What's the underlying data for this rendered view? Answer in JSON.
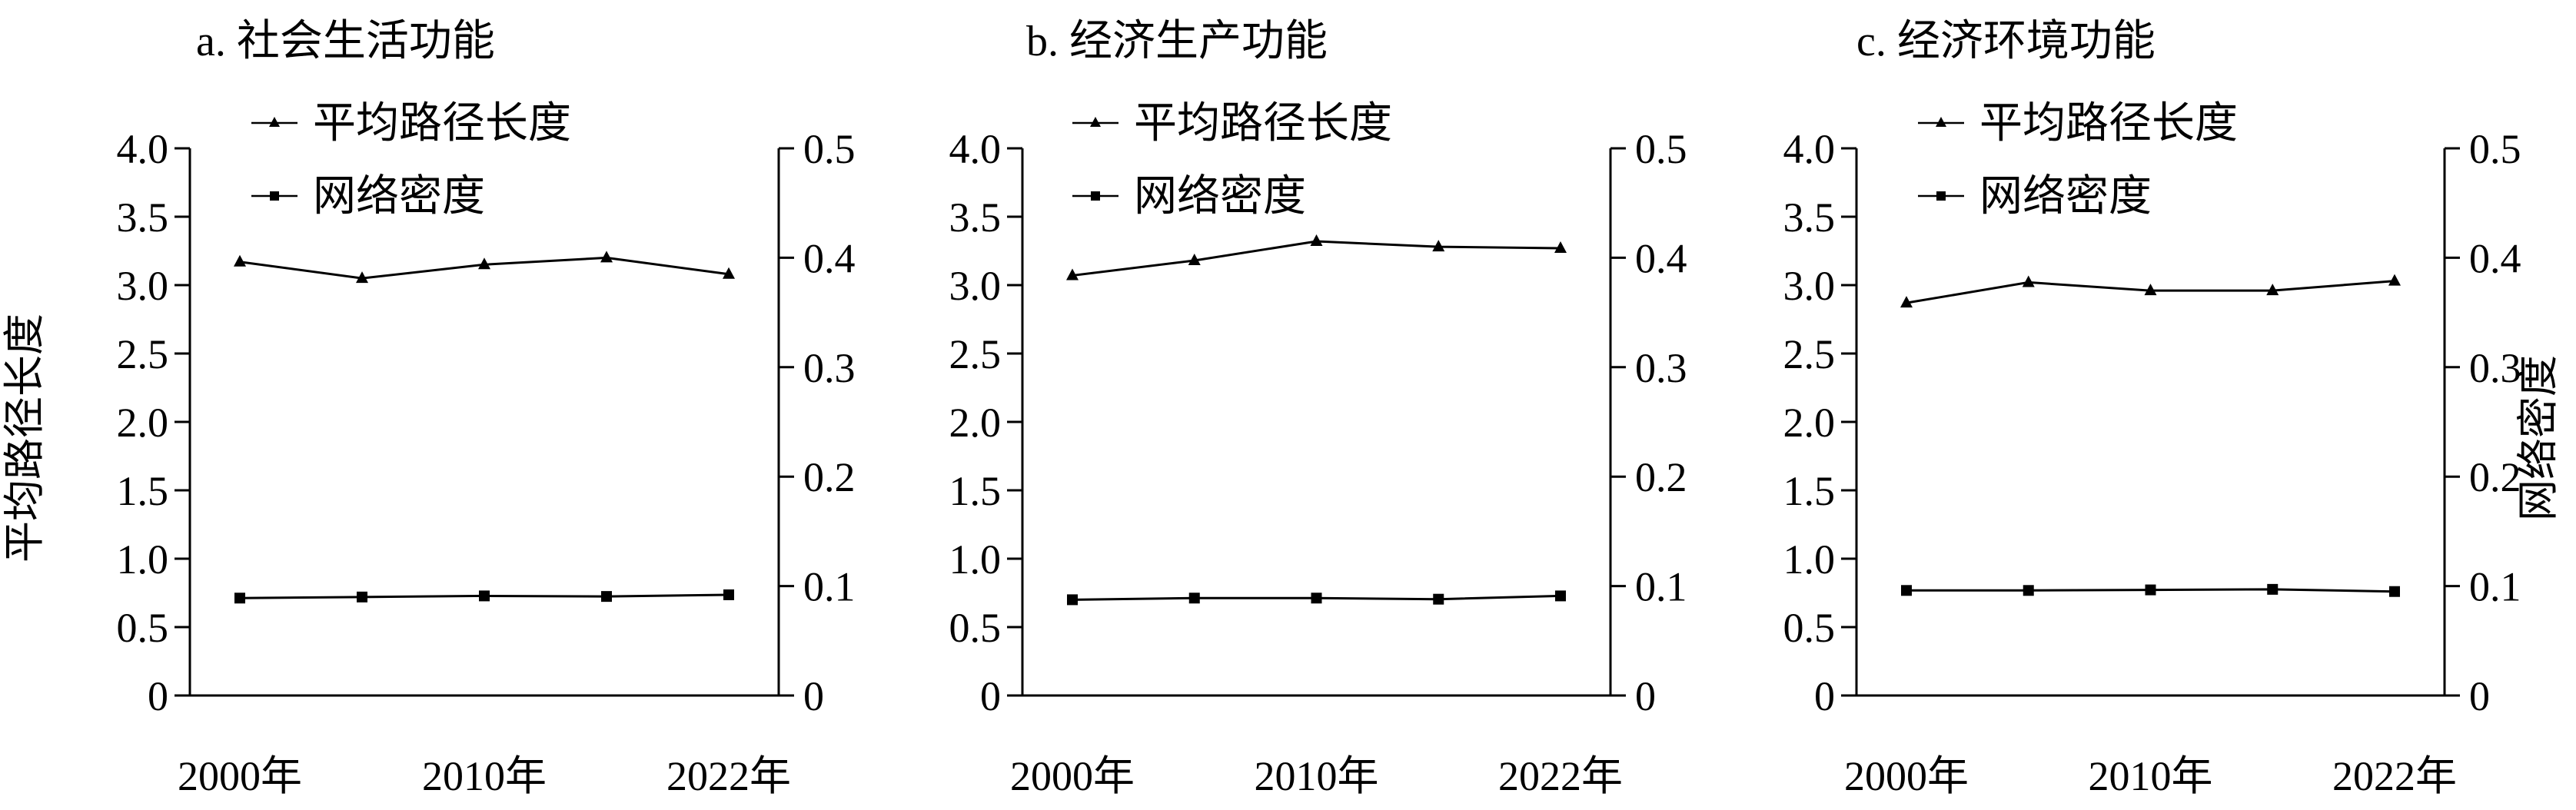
{
  "figure": {
    "y_left_label": "平均路径长度",
    "y_right_label": "网络密度"
  },
  "chart_data": [
    {
      "type": "line",
      "title": "a. 社会生活功能",
      "categories": [
        "2000年",
        "",
        "2010年",
        "",
        "2022年"
      ],
      "ylim_left": [
        0,
        4.0
      ],
      "ylim_right": [
        0,
        0.5
      ],
      "left_ticks": [
        "0",
        "0.5",
        "1.0",
        "1.5",
        "2.0",
        "2.5",
        "3.0",
        "3.5",
        "4.0"
      ],
      "right_ticks": [
        "0",
        "0.1",
        "0.2",
        "0.3",
        "0.4",
        "0.5"
      ],
      "legend_position": "top-left",
      "series": [
        {
          "name": "平均路径长度",
          "axis": "left",
          "marker": "triangle",
          "values": [
            3.17,
            3.05,
            3.15,
            3.2,
            3.08
          ]
        },
        {
          "name": "网络密度",
          "axis": "right",
          "marker": "square",
          "values": [
            0.089,
            0.09,
            0.091,
            0.0905,
            0.092
          ]
        }
      ]
    },
    {
      "type": "line",
      "title": "b. 经济生产功能",
      "categories": [
        "2000年",
        "",
        "2010年",
        "",
        "2022年"
      ],
      "ylim_left": [
        0,
        4.0
      ],
      "ylim_right": [
        0,
        0.5
      ],
      "left_ticks": [
        "0",
        "0.5",
        "1.0",
        "1.5",
        "2.0",
        "2.5",
        "3.0",
        "3.5",
        "4.0"
      ],
      "right_ticks": [
        "0",
        "0.1",
        "0.2",
        "0.3",
        "0.4",
        "0.5"
      ],
      "legend_position": "top-left",
      "series": [
        {
          "name": "平均路径长度",
          "axis": "left",
          "marker": "triangle",
          "values": [
            3.07,
            3.18,
            3.32,
            3.28,
            3.27
          ]
        },
        {
          "name": "网络密度",
          "axis": "right",
          "marker": "square",
          "values": [
            0.0875,
            0.089,
            0.089,
            0.088,
            0.091
          ]
        }
      ]
    },
    {
      "type": "line",
      "title": "c. 经济环境功能",
      "categories": [
        "2000年",
        "",
        "2010年",
        "",
        "2022年"
      ],
      "ylim_left": [
        0,
        4.0
      ],
      "ylim_right": [
        0,
        0.5
      ],
      "left_ticks": [
        "0",
        "0.5",
        "1.0",
        "1.5",
        "2.0",
        "2.5",
        "3.0",
        "3.5",
        "4.0"
      ],
      "right_ticks": [
        "0",
        "0.1",
        "0.2",
        "0.3",
        "0.4",
        "0.5"
      ],
      "legend_position": "top-left",
      "series": [
        {
          "name": "平均路径长度",
          "axis": "left",
          "marker": "triangle",
          "values": [
            2.87,
            3.02,
            2.96,
            2.96,
            3.03
          ]
        },
        {
          "name": "网络密度",
          "axis": "right",
          "marker": "square",
          "values": [
            0.096,
            0.096,
            0.0965,
            0.097,
            0.095
          ]
        }
      ]
    }
  ]
}
